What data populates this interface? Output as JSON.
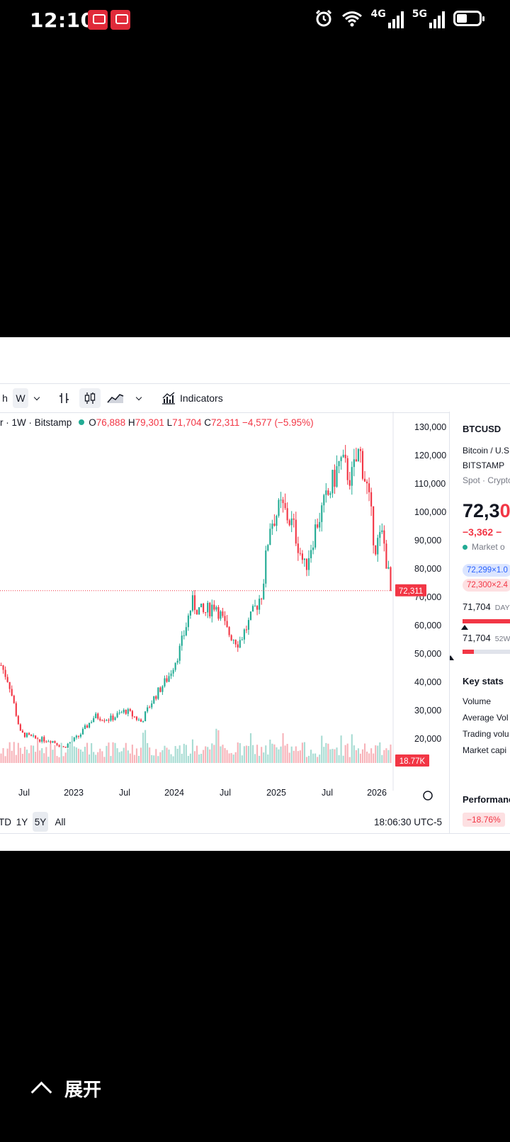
{
  "status_bar": {
    "time": "12:10",
    "net1": "4G",
    "net2": "5G"
  },
  "toolbar": {
    "interval_partial": "h",
    "interval": "W",
    "indicators_label": "Indicators"
  },
  "legend": {
    "prefix": "r · 1W · Bitstamp",
    "open_label": "O",
    "open": "76,888",
    "high_label": "H",
    "high": "79,301",
    "low_label": "L",
    "low": "71,704",
    "close_label": "C",
    "close": "72,311",
    "change": "−4,577 (−5.95%)"
  },
  "chart_data": {
    "type": "candlestick",
    "y_ticks": [
      "130,000",
      "120,000",
      "110,000",
      "100,000",
      "90,000",
      "80,000",
      "70,000",
      "60,000",
      "50,000",
      "40,000",
      "30,000",
      "20,000"
    ],
    "x_ticks": [
      "Jul",
      "2023",
      "Jul",
      "2024",
      "Jul",
      "2025",
      "Jul",
      "2026"
    ],
    "y_range": [
      10000,
      130000
    ],
    "last_price_label": "72,311",
    "volume_label": "18.77K",
    "approx_weekly_close_path": [
      [
        0.0,
        46000
      ],
      [
        0.02,
        40000
      ],
      [
        0.05,
        22000
      ],
      [
        0.09,
        20000
      ],
      [
        0.13,
        19500
      ],
      [
        0.16,
        17000
      ],
      [
        0.2,
        21000
      ],
      [
        0.24,
        28000
      ],
      [
        0.28,
        27000
      ],
      [
        0.32,
        30000
      ],
      [
        0.36,
        26000
      ],
      [
        0.39,
        34000
      ],
      [
        0.43,
        42000
      ],
      [
        0.46,
        52000
      ],
      [
        0.49,
        68000
      ],
      [
        0.52,
        64000
      ],
      [
        0.55,
        68000
      ],
      [
        0.58,
        58000
      ],
      [
        0.61,
        54000
      ],
      [
        0.64,
        62000
      ],
      [
        0.67,
        72000
      ],
      [
        0.69,
        96000
      ],
      [
        0.72,
        102000
      ],
      [
        0.75,
        95000
      ],
      [
        0.78,
        80000
      ],
      [
        0.81,
        96000
      ],
      [
        0.84,
        106000
      ],
      [
        0.87,
        118000
      ],
      [
        0.9,
        112000
      ],
      [
        0.92,
        122000
      ],
      [
        0.94,
        108000
      ],
      [
        0.96,
        88000
      ],
      [
        0.98,
        92000
      ],
      [
        1.0,
        72311
      ]
    ]
  },
  "range": {
    "ytd": "TD",
    "y1": "1Y",
    "y5": "5Y",
    "all": "All",
    "time": "18:06:30 UTC-5"
  },
  "side_panel": {
    "symbol": "BTCUSD",
    "name": "Bitcoin / U.S.",
    "exchange": "BITSTAMP",
    "type": "Spot · Crypto",
    "price_main": "72,3",
    "price_tail": "0",
    "change": "−3,362  −",
    "market_status": "Market o",
    "bid": "72,299×1.0",
    "ask": "72,300×2.4",
    "day_low": "71,704",
    "day_label": "DAY",
    "w52_low": "71,704",
    "w52_label": "52W",
    "key_stats": "Key stats",
    "stats": [
      "Volume",
      "Average Vol",
      "Trading volu",
      "Market capi"
    ],
    "performance": "Performance",
    "perf_value": "−18.76%"
  },
  "colors": {
    "up": "#22ab94",
    "down": "#f23645",
    "accent": "#2962ff"
  },
  "expand_label": "展开"
}
